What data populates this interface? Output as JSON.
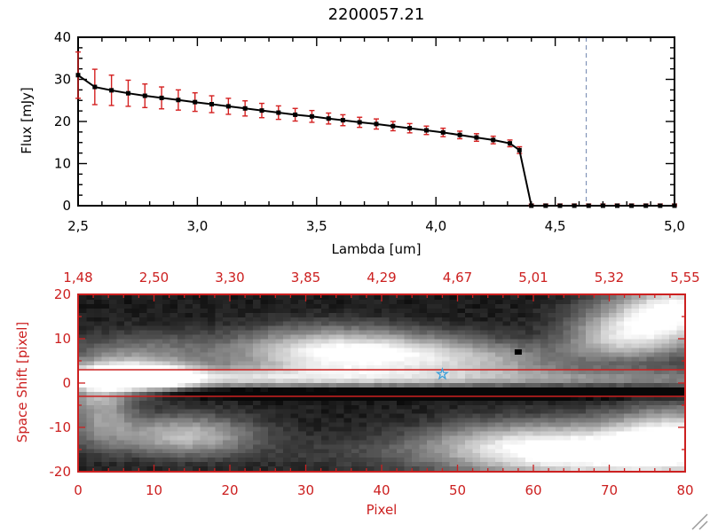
{
  "title": "2200057.21",
  "colors": {
    "axis_black": "#000000",
    "axis_red": "#cc2020",
    "error_red": "#d42020",
    "vline_blue": "#8093b8",
    "star_blue": "#3f9fd8",
    "aperture_red": "#cc2020",
    "grip_gray": "#9a9a9a"
  },
  "chart_data": [
    {
      "type": "line",
      "title": "2200057.21",
      "xlabel": "Lambda [um]",
      "ylabel": "Flux [mJy]",
      "xlim": [
        2.5,
        5.0
      ],
      "ylim": [
        0,
        40
      ],
      "xtick_values": [
        2.5,
        3.0,
        3.5,
        4.0,
        4.5,
        5.0
      ],
      "xtick_labels": [
        "2,5",
        "3,0",
        "3,5",
        "4,0",
        "4,5",
        "5,0"
      ],
      "ytick_values": [
        0,
        10,
        20,
        30,
        40
      ],
      "ytick_labels": [
        "0",
        "10",
        "20",
        "30",
        "40"
      ],
      "vline_x": 4.63,
      "series": [
        {
          "name": "flux",
          "marker": "square",
          "x": [
            2.5,
            2.57,
            2.64,
            2.71,
            2.78,
            2.85,
            2.92,
            2.99,
            3.06,
            3.13,
            3.2,
            3.27,
            3.34,
            3.41,
            3.48,
            3.55,
            3.61,
            3.68,
            3.75,
            3.82,
            3.89,
            3.96,
            4.03,
            4.1,
            4.17,
            4.24,
            4.31,
            4.35,
            4.4,
            4.46,
            4.52,
            4.58,
            4.64,
            4.7,
            4.76,
            4.82,
            4.88,
            4.94,
            5.0
          ],
          "y": [
            31.0,
            28.2,
            27.4,
            26.7,
            26.1,
            25.6,
            25.1,
            24.6,
            24.1,
            23.6,
            23.1,
            22.6,
            22.1,
            21.6,
            21.2,
            20.7,
            20.3,
            19.8,
            19.4,
            18.9,
            18.4,
            17.9,
            17.4,
            16.8,
            16.2,
            15.6,
            14.8,
            13.2,
            0.0,
            0.0,
            0.0,
            0.0,
            0.0,
            0.0,
            0.0,
            0.0,
            0.0,
            0.0,
            0.0
          ],
          "yerr": [
            5.5,
            4.2,
            3.6,
            3.1,
            2.8,
            2.6,
            2.4,
            2.2,
            2.0,
            1.9,
            1.8,
            1.7,
            1.6,
            1.5,
            1.4,
            1.3,
            1.3,
            1.2,
            1.2,
            1.1,
            1.1,
            1.0,
            1.0,
            0.9,
            0.9,
            0.9,
            0.8,
            0.8,
            0.4,
            0.4,
            0.4,
            0.4,
            0.4,
            0.4,
            0.4,
            0.4,
            0.4,
            0.4,
            0.4
          ]
        }
      ]
    },
    {
      "type": "heatmap",
      "xlabel": "Pixel",
      "ylabel": "Space Shift [pixel]",
      "xlim": [
        0,
        80
      ],
      "ylim": [
        -20,
        20
      ],
      "xtick_values": [
        0,
        10,
        20,
        30,
        40,
        50,
        60,
        70,
        80
      ],
      "xtick_labels": [
        "0",
        "10",
        "20",
        "30",
        "40",
        "50",
        "60",
        "70",
        "80"
      ],
      "ytick_values": [
        20,
        10,
        0,
        -10,
        -20
      ],
      "ytick_labels": [
        "20",
        "10",
        "0",
        "-10",
        "-20"
      ],
      "top_axis_labels": [
        "1,48",
        "2,50",
        "3,30",
        "3,85",
        "4,29",
        "4,67",
        "5,01",
        "5,32",
        "5,55"
      ],
      "aperture_lines": [
        3,
        -3
      ],
      "star_marker": {
        "x": 48,
        "y": 2
      },
      "dark_pixel": {
        "x": 58,
        "y": 7
      },
      "grid": [
        80,
        40
      ],
      "background_level": 0.05,
      "blobs": [
        [
          8,
          1,
          4.5,
          2.2,
          1.2
        ],
        [
          2,
          0,
          3,
          3,
          0.55
        ],
        [
          40,
          1,
          45,
          1.7,
          0.5
        ],
        [
          18,
          1,
          10,
          1.8,
          0.2
        ],
        [
          8,
          6,
          7,
          3.5,
          0.4
        ],
        [
          33,
          7,
          9,
          3.8,
          0.85
        ],
        [
          46,
          6,
          9,
          3.2,
          0.5
        ],
        [
          56,
          5,
          7,
          2.5,
          0.25
        ],
        [
          75,
          13,
          6,
          4.5,
          0.8
        ],
        [
          80,
          18,
          5,
          4,
          0.65
        ],
        [
          70,
          9,
          5,
          3,
          0.3
        ],
        [
          14,
          -12,
          6.5,
          3.2,
          0.65
        ],
        [
          3,
          -7,
          3,
          5,
          0.45
        ],
        [
          67,
          -16,
          11,
          4.5,
          0.95
        ],
        [
          79,
          -13,
          6,
          5,
          0.85
        ],
        [
          55,
          -14,
          8,
          3.5,
          0.35
        ],
        [
          38,
          -16,
          10,
          3,
          0.12
        ],
        [
          40,
          -2,
          45,
          1.0,
          -0.4
        ]
      ]
    }
  ]
}
